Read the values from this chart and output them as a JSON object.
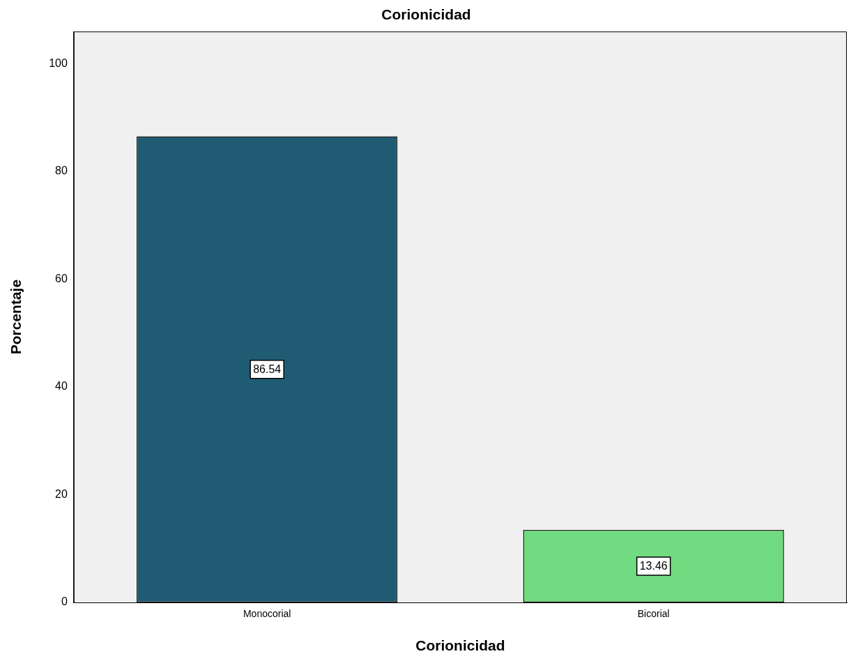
{
  "chart_data": {
    "type": "bar",
    "title": "Corionicidad",
    "xlabel": "Corionicidad",
    "ylabel": "Porcentaje",
    "categories": [
      "Monocorial",
      "Bicorial"
    ],
    "values": [
      86.54,
      13.46
    ],
    "colors": [
      "#1f5c73",
      "#70db80"
    ],
    "ylim": [
      0,
      106
    ],
    "yticks": [
      0,
      20,
      40,
      60,
      80,
      100
    ],
    "grid": false,
    "legend": false,
    "data_labels": true
  }
}
